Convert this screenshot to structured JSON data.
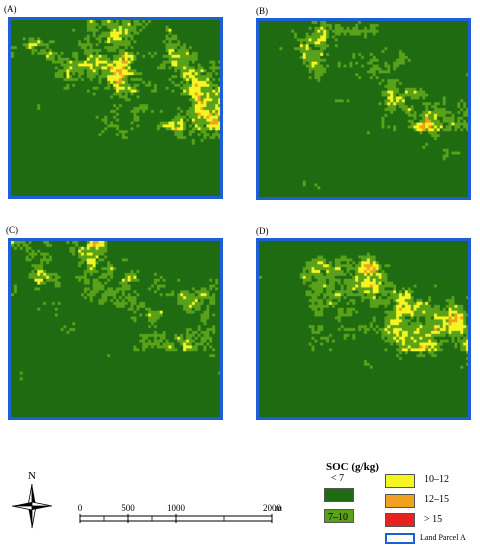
{
  "panels": [
    {
      "label": "(A)",
      "seed": 11
    },
    {
      "label": "(B)",
      "seed": 23
    },
    {
      "label": "(C)",
      "seed": 37
    },
    {
      "label": "(D)",
      "seed": 51
    }
  ],
  "north_label": "N",
  "scale": {
    "ticks": [
      "0",
      "500",
      "1000",
      "2000"
    ],
    "tick_values": [
      0,
      500,
      1000,
      2000
    ],
    "unit": "m"
  },
  "legend": {
    "title": "SOC (g/kg)",
    "classes": [
      {
        "label": "< 7",
        "color": "#1e6b12"
      },
      {
        "label": "7–10",
        "color": "#5aa11a"
      },
      {
        "label": "10–12",
        "color": "#f5f522"
      },
      {
        "label": "12–15",
        "color": "#f2a020"
      },
      {
        "label": "> 15",
        "color": "#e8231f"
      }
    ],
    "parcel": {
      "label": "Land Parcel A",
      "color": "#1c5fd6"
    }
  }
}
